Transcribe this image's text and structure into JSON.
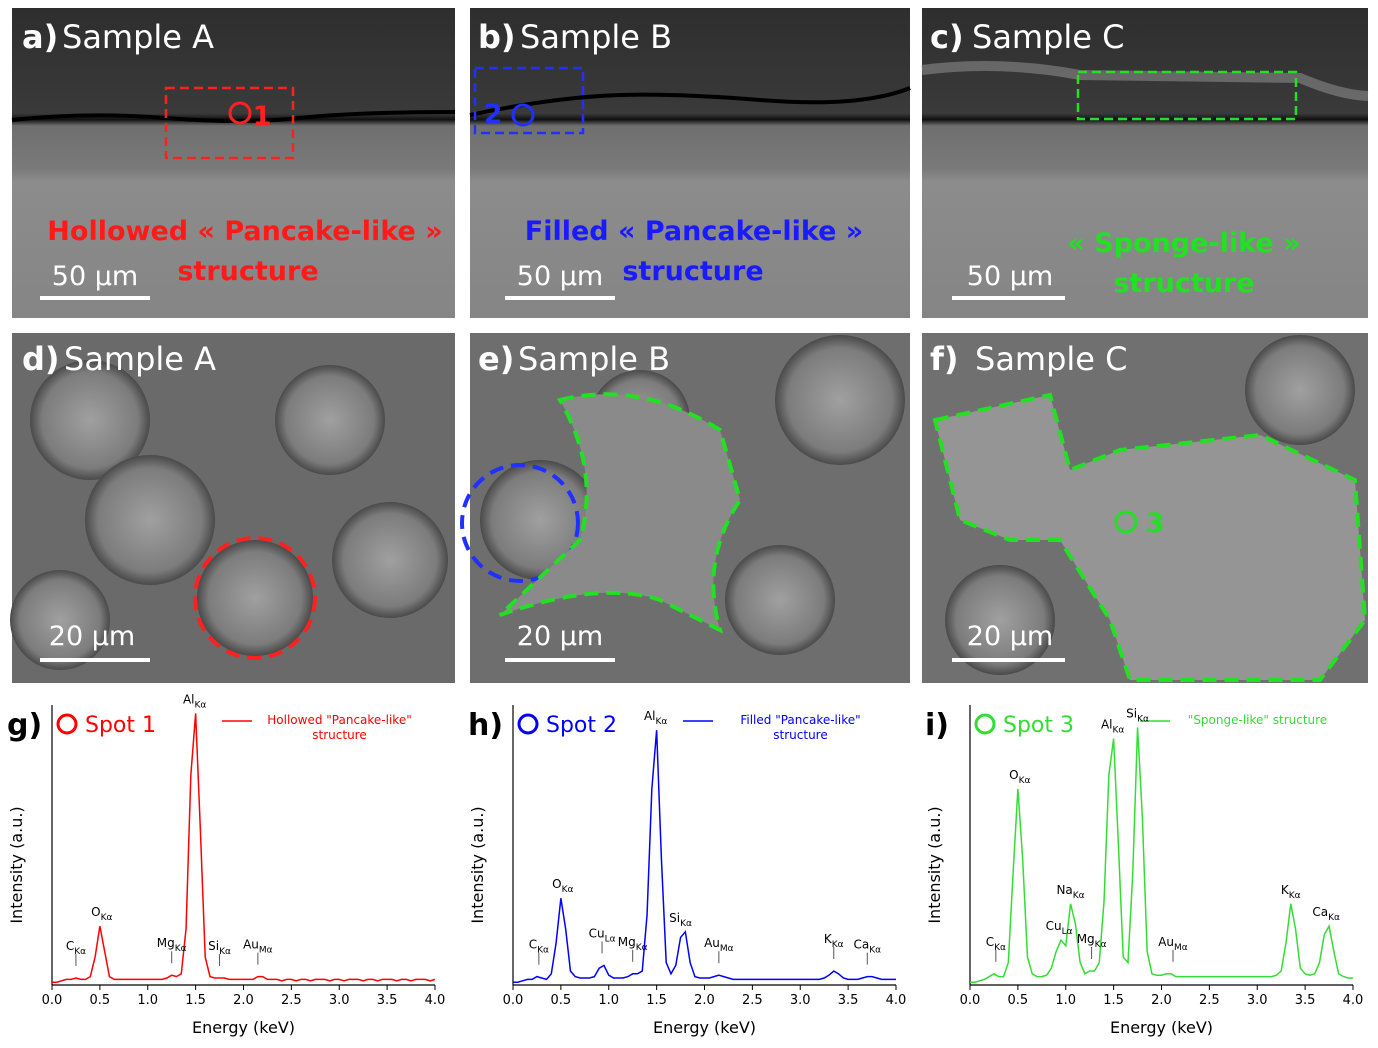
{
  "panels": [
    {
      "label": "a)",
      "title": "Sample A",
      "caption": [
        "Hollowed « Pancake-like »",
        "structure"
      ],
      "scale": "50 µm",
      "spot": "1"
    },
    {
      "label": "b)",
      "title": "Sample B",
      "caption": [
        "Filled « Pancake-like »",
        "structure"
      ],
      "scale": "50 µm",
      "spot": "2"
    },
    {
      "label": "c)",
      "title": "Sample C",
      "caption": [
        "« Sponge-like »",
        "structure"
      ],
      "scale": "50 µm"
    },
    {
      "label": "d)",
      "title": "Sample A",
      "scale": "20 µm"
    },
    {
      "label": "e)",
      "title": "Sample B",
      "scale": "20 µm"
    },
    {
      "label": "f)",
      "title": "Sample C",
      "scale": "20 µm",
      "spot": "3"
    }
  ],
  "chart_data": [
    {
      "type": "line",
      "label": "g)",
      "title": "Spot 1",
      "xlabel": "Energy (keV)",
      "ylabel": "Intensity (a.u.)",
      "xlim": [
        0,
        4
      ],
      "ylim": [
        0,
        100
      ],
      "xticks": [
        {
          "value": 0,
          "label": "0.0"
        },
        0.5,
        {
          "value": 1,
          "label": "1.0"
        },
        1.5,
        {
          "value": 2,
          "label": "2.0"
        },
        2.5,
        {
          "value": 3,
          "label": "3.0"
        },
        3.5,
        {
          "value": 4,
          "label": "4.0"
        }
      ],
      "x": [
        0,
        0.05,
        0.1,
        0.15,
        0.2,
        0.25,
        0.3,
        0.35,
        0.4,
        0.45,
        0.5,
        0.55,
        0.6,
        0.65,
        0.7,
        0.75,
        0.8,
        0.85,
        0.9,
        0.95,
        1,
        1.05,
        1.1,
        1.15,
        1.2,
        1.25,
        1.3,
        1.35,
        1.4,
        1.45,
        1.5,
        1.55,
        1.6,
        1.65,
        1.7,
        1.75,
        1.8,
        1.85,
        1.9,
        1.95,
        2,
        2.05,
        2.1,
        2.15,
        2.2,
        2.25,
        2.3,
        2.35,
        2.4,
        2.45,
        2.5,
        2.55,
        2.6,
        2.65,
        2.7,
        2.75,
        2.8,
        2.85,
        2.9,
        2.95,
        3,
        3.05,
        3.1,
        3.15,
        3.2,
        3.25,
        3.3,
        3.35,
        3.4,
        3.45,
        3.5,
        3.55,
        3.6,
        3.65,
        3.7,
        3.75,
        3.8,
        3.85,
        3.9,
        3.95,
        4
      ],
      "series": [
        {
          "name": "Hollowed \"Pancake-like\" structure",
          "color": "#ff0000",
          "values": [
            1,
            1,
            1.5,
            2,
            2,
            2.5,
            2,
            2,
            3,
            10,
            21,
            12,
            3,
            2,
            2,
            2,
            2,
            2,
            2,
            2,
            2,
            2,
            2,
            2,
            2.5,
            3.5,
            3,
            4,
            20,
            75,
            97,
            55,
            10,
            3,
            2.5,
            2.5,
            2.5,
            2,
            2,
            2,
            2,
            2,
            2,
            3,
            3,
            2,
            2,
            2,
            1.5,
            2,
            2,
            1.5,
            2,
            2,
            1.5,
            2,
            2,
            2,
            1.5,
            2,
            2,
            1.5,
            2,
            2,
            2,
            1.5,
            2,
            2,
            1.5,
            2,
            2,
            2,
            1.5,
            2,
            2,
            1.5,
            2,
            2,
            2,
            1.5,
            2
          ]
        }
      ],
      "annotations": [
        {
          "element": "C",
          "line": "Kα",
          "energy": 0.25
        },
        {
          "element": "O",
          "line": "Kα",
          "energy": 0.52
        },
        {
          "element": "Mg",
          "line": "Kα",
          "energy": 1.25
        },
        {
          "element": "Al",
          "line": "Kα",
          "energy": 1.49
        },
        {
          "element": "Si",
          "line": "Kα",
          "energy": 1.75
        },
        {
          "element": "Au",
          "line": "Mα",
          "energy": 2.15
        }
      ]
    },
    {
      "type": "line",
      "label": "h)",
      "title": "Spot 2",
      "xlabel": "Energy (keV)",
      "ylabel": "Intensity (a.u.)",
      "xlim": [
        0,
        4
      ],
      "ylim": [
        0,
        100
      ],
      "xticks": [
        {
          "value": 0,
          "label": "0.0"
        },
        0.5,
        {
          "value": 1,
          "label": "1.0"
        },
        1.5,
        {
          "value": 2,
          "label": "2.0"
        },
        2.5,
        {
          "value": 3,
          "label": "3.0"
        },
        3.5,
        {
          "value": 4,
          "label": "4.0"
        }
      ],
      "x": [
        0,
        0.05,
        0.1,
        0.15,
        0.2,
        0.25,
        0.3,
        0.35,
        0.4,
        0.45,
        0.5,
        0.55,
        0.6,
        0.65,
        0.7,
        0.75,
        0.8,
        0.85,
        0.9,
        0.95,
        1,
        1.05,
        1.1,
        1.15,
        1.2,
        1.25,
        1.3,
        1.35,
        1.4,
        1.45,
        1.5,
        1.55,
        1.6,
        1.65,
        1.7,
        1.75,
        1.8,
        1.85,
        1.9,
        1.95,
        2,
        2.05,
        2.1,
        2.15,
        2.2,
        2.25,
        2.3,
        2.35,
        2.4,
        2.45,
        2.5,
        2.55,
        2.6,
        2.65,
        2.7,
        2.75,
        2.8,
        2.85,
        2.9,
        2.95,
        3,
        3.05,
        3.1,
        3.15,
        3.2,
        3.25,
        3.3,
        3.35,
        3.4,
        3.45,
        3.5,
        3.55,
        3.6,
        3.65,
        3.7,
        3.75,
        3.8,
        3.85,
        3.9,
        3.95,
        4
      ],
      "series": [
        {
          "name": "Filled \"Pancake-like\" structure",
          "color": "#0000ff",
          "values": [
            1,
            1,
            1.5,
            2,
            2,
            3,
            2.5,
            2,
            4,
            15,
            31,
            20,
            5,
            3,
            2.5,
            2.5,
            2.5,
            3,
            6,
            7,
            3.5,
            2.5,
            2.5,
            2.5,
            3,
            4,
            4,
            5,
            25,
            70,
            91,
            45,
            8,
            4,
            7,
            17,
            19,
            8,
            3,
            2.5,
            2.5,
            2.5,
            3,
            3.5,
            3,
            2.5,
            2,
            2,
            2,
            2,
            2,
            2,
            2,
            2,
            2,
            2,
            2,
            2,
            2,
            2,
            2,
            2,
            2,
            2,
            2,
            2.5,
            3.5,
            5,
            4,
            2.5,
            2,
            2,
            2,
            2.5,
            3,
            3,
            2.5,
            2,
            2,
            2,
            2
          ]
        }
      ],
      "annotations": [
        {
          "element": "C",
          "line": "Kα",
          "energy": 0.27
        },
        {
          "element": "O",
          "line": "Kα",
          "energy": 0.52
        },
        {
          "element": "Cu",
          "line": "Lα",
          "energy": 0.93
        },
        {
          "element": "Mg",
          "line": "Kα",
          "energy": 1.25
        },
        {
          "element": "Al",
          "line": "Kα",
          "energy": 1.49
        },
        {
          "element": "Si",
          "line": "Kα",
          "energy": 1.75
        },
        {
          "element": "Au",
          "line": "Mα",
          "energy": 2.15
        },
        {
          "element": "K",
          "line": "Kα",
          "energy": 3.35
        },
        {
          "element": "Ca",
          "line": "Kα",
          "energy": 3.7
        }
      ]
    },
    {
      "type": "line",
      "label": "i)",
      "title": "Spot 3",
      "xlabel": "Energy (keV)",
      "ylabel": "Intensity (a.u.)",
      "xlim": [
        0,
        4
      ],
      "ylim": [
        0,
        100
      ],
      "xticks": [
        {
          "value": 0,
          "label": "0.0"
        },
        0.5,
        {
          "value": 1,
          "label": "1.0"
        },
        1.5,
        {
          "value": 2,
          "label": "2.0"
        },
        2.5,
        {
          "value": 3,
          "label": "3.0"
        },
        3.5,
        {
          "value": 4,
          "label": "4.0"
        }
      ],
      "x": [
        0,
        0.05,
        0.1,
        0.15,
        0.2,
        0.25,
        0.3,
        0.35,
        0.4,
        0.45,
        0.5,
        0.55,
        0.6,
        0.65,
        0.7,
        0.75,
        0.8,
        0.85,
        0.9,
        0.95,
        1,
        1.05,
        1.1,
        1.15,
        1.2,
        1.25,
        1.3,
        1.35,
        1.4,
        1.45,
        1.5,
        1.55,
        1.6,
        1.65,
        1.7,
        1.75,
        1.8,
        1.85,
        1.9,
        1.95,
        2,
        2.05,
        2.1,
        2.15,
        2.2,
        2.25,
        2.3,
        2.35,
        2.4,
        2.45,
        2.5,
        2.55,
        2.6,
        2.65,
        2.7,
        2.75,
        2.8,
        2.85,
        2.9,
        2.95,
        3,
        3.05,
        3.1,
        3.15,
        3.2,
        3.25,
        3.3,
        3.35,
        3.4,
        3.45,
        3.5,
        3.55,
        3.6,
        3.65,
        3.7,
        3.75,
        3.8,
        3.85,
        3.9,
        3.95,
        4
      ],
      "series": [
        {
          "name": "\"Sponge-like\" structure",
          "color": "#33dd33",
          "values": [
            1,
            1,
            1.5,
            2,
            3,
            4,
            3,
            3,
            8,
            40,
            70,
            45,
            10,
            4,
            3,
            3,
            3.5,
            6,
            12,
            16,
            14,
            29,
            22,
            8,
            4,
            5,
            5,
            8,
            30,
            75,
            88,
            50,
            10,
            8,
            40,
            92,
            60,
            12,
            4,
            3.5,
            3.5,
            4,
            4,
            3,
            3,
            3,
            3,
            3,
            3,
            3,
            3,
            3,
            3,
            3,
            3,
            3,
            3,
            3,
            3,
            3,
            3,
            3,
            3,
            3,
            3.5,
            5,
            15,
            29,
            20,
            6,
            4,
            3.5,
            4,
            8,
            18,
            21,
            12,
            4,
            3,
            2.5,
            2.5
          ]
        }
      ],
      "annotations": [
        {
          "element": "C",
          "line": "Kα",
          "energy": 0.27
        },
        {
          "element": "O",
          "line": "Kα",
          "energy": 0.52
        },
        {
          "element": "Cu",
          "line": "Lα",
          "energy": 0.93
        },
        {
          "element": "Na",
          "line": "Kα",
          "energy": 1.05
        },
        {
          "element": "Mg",
          "line": "Kα",
          "energy": 1.27
        },
        {
          "element": "Al",
          "line": "Kα",
          "energy": 1.49
        },
        {
          "element": "Si",
          "line": "Kα",
          "energy": 1.75
        },
        {
          "element": "Au",
          "line": "Mα",
          "energy": 2.12
        },
        {
          "element": "K",
          "line": "Kα",
          "energy": 3.35
        },
        {
          "element": "Ca",
          "line": "Kα",
          "energy": 3.72
        }
      ]
    }
  ]
}
